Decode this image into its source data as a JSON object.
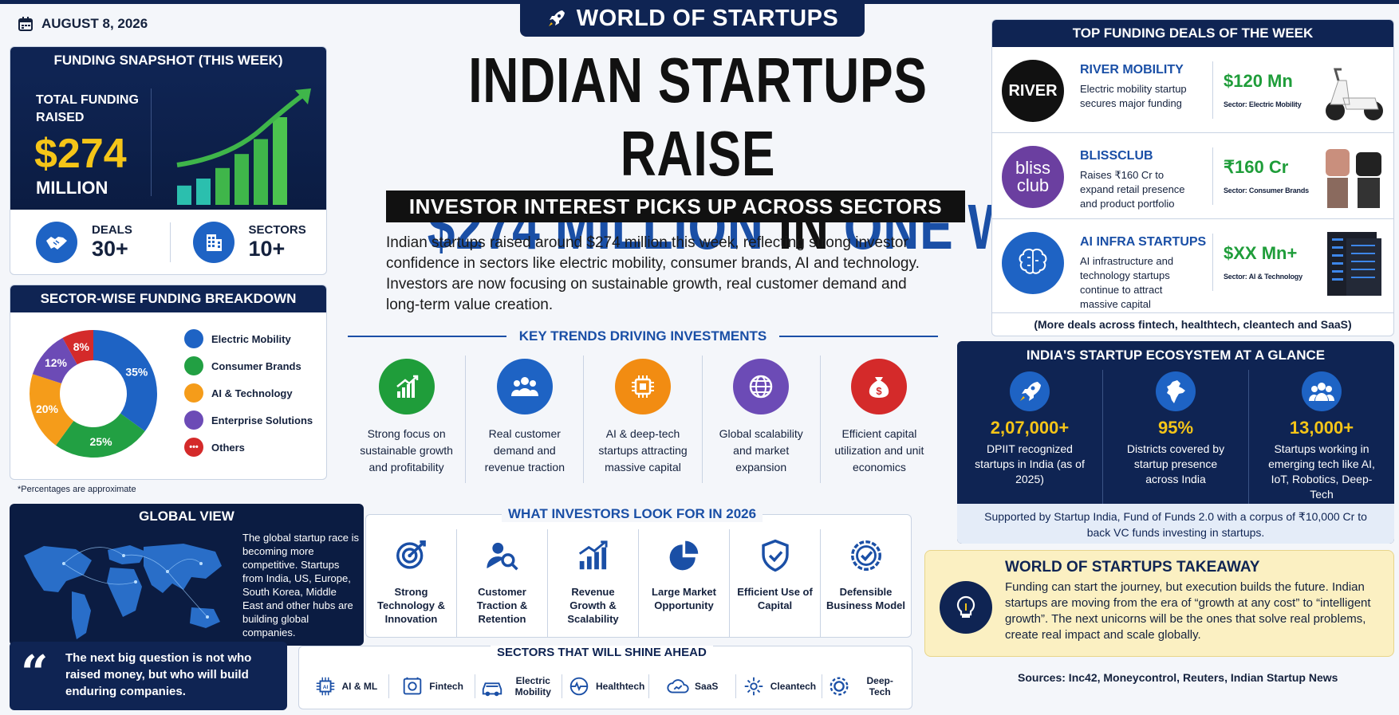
{
  "date": "AUGUST 8, 2026",
  "brand": "WORLD OF STARTUPS",
  "headline": {
    "line1": "INDIAN STARTUPS RAISE",
    "line2_a": "$274 MILLION",
    "line2_b": "IN",
    "line2_c": "ONE WEEK",
    "subtitle": "INVESTOR INTEREST PICKS UP ACROSS SECTORS",
    "intro": "Indian startups raised around $274 million this week, reflecting strong investor confidence in sectors like electric mobility, consumer brands, AI and technology. Investors are now focusing on sustainable growth, real customer demand and long-term value creation."
  },
  "snapshot": {
    "title": "FUNDING SNAPSHOT (THIS WEEK)",
    "total_label": "TOTAL FUNDING RAISED",
    "amount": "$274",
    "unit": "MILLION",
    "deals_label": "DEALS",
    "deals_value": "30+",
    "sectors_label": "SECTORS",
    "sectors_value": "10+",
    "bars": [
      0.22,
      0.3,
      0.42,
      0.58,
      0.75,
      1.0
    ]
  },
  "breakdown": {
    "title": "SECTOR-WISE FUNDING BREAKDOWN",
    "note": "*Percentages are approximate"
  },
  "chart_data": {
    "type": "pie",
    "labels": [
      "Electric Mobility",
      "Consumer Brands",
      "AI & Technology",
      "Enterprise Solutions",
      "Others"
    ],
    "values": [
      35,
      25,
      20,
      12,
      8
    ],
    "value_labels": [
      "35%",
      "25%",
      "20%",
      "12%",
      "8%"
    ],
    "colors": [
      "#1e63c4",
      "#22a043",
      "#f59c1a",
      "#6c4bb6",
      "#d42a2a"
    ],
    "legend_position": "right"
  },
  "global": {
    "title": "GLOBAL VIEW",
    "text": "The global startup race is becoming more competitive. Startups from India, US, Europe, South Korea, Middle East and other hubs are building global companies."
  },
  "quote": "The next big question is not who raised money, but who will build enduring companies.",
  "trends": {
    "title": "KEY TRENDS DRIVING INVESTMENTS",
    "items": [
      {
        "icon": "growth-chart-icon",
        "color": "#1f9d3a",
        "label": "Strong focus on sustainable growth and profitability"
      },
      {
        "icon": "people-icon",
        "color": "#1e63c4",
        "label": "Real customer demand and revenue traction"
      },
      {
        "icon": "chip-icon",
        "color": "#f28c12",
        "label": "AI & deep-tech startups attracting massive capital"
      },
      {
        "icon": "globe-icon",
        "color": "#6c4bb6",
        "label": "Global scalability and market expansion"
      },
      {
        "icon": "money-bag-icon",
        "color": "#d42a2a",
        "label": "Efficient capital utilization and unit economics"
      }
    ]
  },
  "investors": {
    "title": "WHAT INVESTORS LOOK FOR IN 2026",
    "items": [
      {
        "icon": "target-icon",
        "label": "Strong Technology & Innovation"
      },
      {
        "icon": "user-search-icon",
        "label": "Customer Traction & Retention"
      },
      {
        "icon": "revenue-growth-icon",
        "label": "Revenue Growth & Scalability"
      },
      {
        "icon": "pie-chart-icon",
        "label": "Large Market Opportunity"
      },
      {
        "icon": "shield-check-icon",
        "label": "Efficient Use of Capital"
      },
      {
        "icon": "badge-check-icon",
        "label": "Defensible Business Model"
      }
    ]
  },
  "sectors_ahead": {
    "title": "SECTORS THAT WILL SHINE AHEAD",
    "items": [
      {
        "icon": "ai-chip-icon",
        "label": "AI & ML"
      },
      {
        "icon": "fintech-icon",
        "label": "Fintech"
      },
      {
        "icon": "car-icon",
        "label": "Electric Mobility"
      },
      {
        "icon": "health-icon",
        "label": "Healthtech"
      },
      {
        "icon": "cloud-icon",
        "label": "SaaS"
      },
      {
        "icon": "leaf-icon",
        "label": "Cleantech"
      },
      {
        "icon": "gear-icon",
        "label": "Deep-Tech"
      }
    ]
  },
  "deals": {
    "title": "TOP FUNDING DEALS OF THE WEEK",
    "items": [
      {
        "logo": "RIVER",
        "name": "RIVER MOBILITY",
        "desc": "Electric mobility startup secures major funding",
        "amount": "$120 Mn",
        "sector": "Sector: Electric Mobility"
      },
      {
        "logo": "bliss club",
        "name": "BLISSCLUB",
        "desc": "Raises ₹160 Cr to expand retail presence and product portfolio",
        "amount": "₹160 Cr",
        "sector": "Sector: Consumer Brands"
      },
      {
        "logo": "",
        "name": "AI INFRA STARTUPS",
        "desc": "AI infrastructure and technology startups continue to attract massive capital",
        "amount": "$XX Mn+",
        "sector": "Sector: AI & Technology"
      }
    ],
    "more": "(More deals across fintech, healthtech, cleantech and SaaS)"
  },
  "ecosystem": {
    "title": "INDIA'S STARTUP ECOSYSTEM AT A GLANCE",
    "items": [
      {
        "icon": "rocket-icon",
        "value": "2,07,000+",
        "label": "DPIIT recognized startups in India (as of 2025)"
      },
      {
        "icon": "india-map-icon",
        "value": "95%",
        "label": "Districts covered by startup presence across India"
      },
      {
        "icon": "team-icon",
        "value": "13,000+",
        "label": "Startups working in emerging tech like AI, IoT, Robotics, Deep-Tech"
      }
    ],
    "footer": "Supported by Startup India, Fund of Funds 2.0 with a corpus of ₹10,000 Cr to back VC funds investing in startups."
  },
  "takeaway": {
    "title": "WORLD OF STARTUPS TAKEAWAY",
    "text": "Funding can start the journey, but execution builds the future. Indian startups are moving from the era of “growth at any cost” to “intelligent growth”. The next unicorns will be the ones that solve real problems, create real impact and scale globally."
  },
  "sources": "Sources: Inc42, Moneycontrol, Reuters, Indian Startup News"
}
